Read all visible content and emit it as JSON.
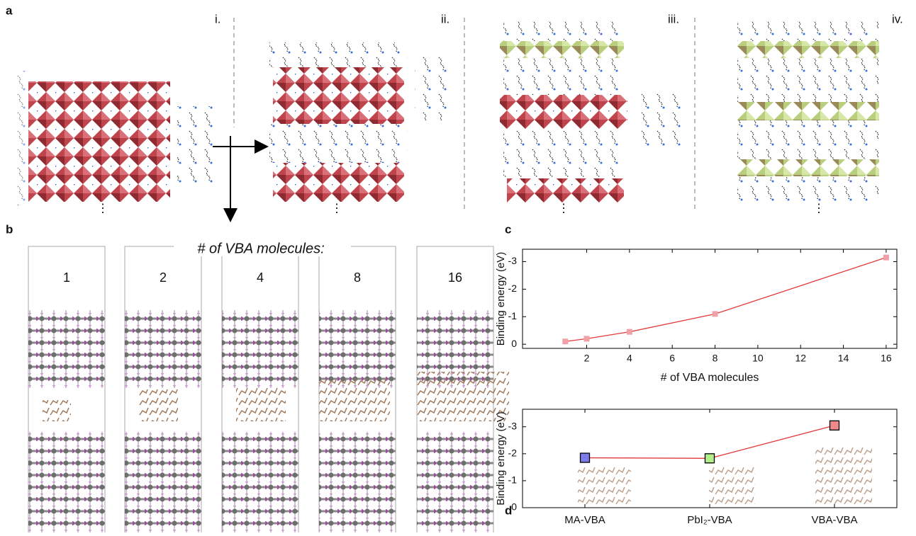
{
  "panels": {
    "a": "a",
    "b": "b",
    "c": "c",
    "d": "d",
    "a_steps": [
      "i.",
      "ii.",
      "iii.",
      "iv."
    ],
    "ellipsis": "⋮",
    "b_title": "# of VBA molecules:",
    "b_counts": [
      "1",
      "2",
      "4",
      "8",
      "16"
    ]
  },
  "chart_data": [
    {
      "type": "line",
      "x_label": "# of VBA molecules",
      "y_label": "Binding energy (eV)",
      "x": [
        1,
        2,
        4,
        8,
        16
      ],
      "values": [
        -0.1,
        -0.2,
        -0.45,
        -1.1,
        -3.15
      ],
      "color": "#e03a3a",
      "marker_color": "#f2a0a8",
      "xlim": [
        -1,
        16.5
      ],
      "xticks": [
        2,
        4,
        6,
        8,
        10,
        12,
        14,
        16
      ],
      "ylim": [
        0.15,
        -3.45
      ],
      "yticks": [
        0,
        -1,
        -2,
        -3
      ]
    },
    {
      "type": "line",
      "y_label": "Binding energy (eV)",
      "categories": [
        "MA-VBA",
        "PbI₂-VBA",
        "VBA-VBA"
      ],
      "values": [
        -1.85,
        -1.83,
        -3.05
      ],
      "color": "#e03a3a",
      "marker_colors": [
        "#7b7bea",
        "#b4f08a",
        "#f08a8a"
      ],
      "ylim": [
        0,
        -3.65
      ],
      "yticks": [
        0,
        -1,
        -2,
        -3
      ]
    }
  ]
}
